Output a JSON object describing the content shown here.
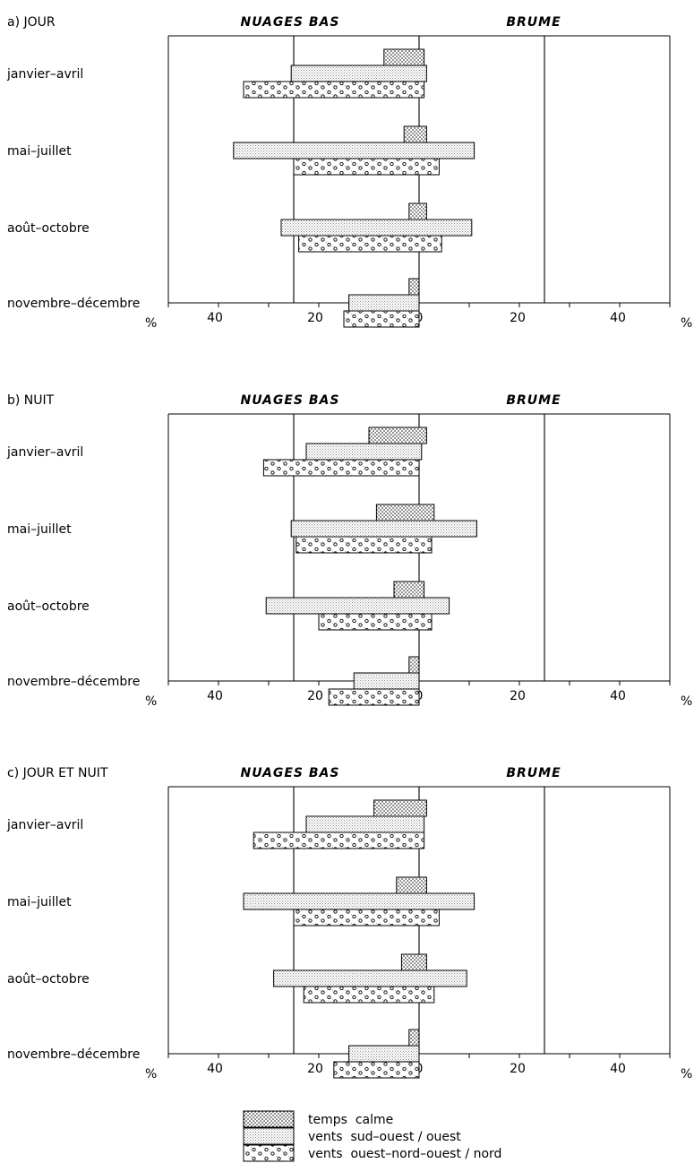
{
  "chart_data": [
    {
      "type": "bar",
      "panel_title": "a) JOUR",
      "left_heading": "NUAGES BAS",
      "right_heading": "BRUME",
      "categories": [
        "janvier–avril",
        "mai–juillet",
        "août–octobre",
        "novembre–décembre"
      ],
      "x_ticks": [
        "40",
        "20",
        "0",
        "20",
        "40"
      ],
      "x_unit": "%",
      "xlim": [
        -50,
        50
      ],
      "reference_lines": [
        -25,
        0,
        25
      ],
      "series": [
        {
          "name": "temps calme",
          "pattern": "dots",
          "low": [
            -7,
            -3,
            -2,
            -2
          ],
          "high": [
            1,
            1.5,
            1.5,
            0
          ]
        },
        {
          "name": "vents sud–ouest / ouest",
          "pattern": "fine",
          "low": [
            -25.5,
            -37,
            -27.5,
            -14
          ],
          "high": [
            1.5,
            11,
            10.5,
            0
          ]
        },
        {
          "name": "vents ouest–nord–ouest / nord",
          "pattern": "circles",
          "low": [
            -35,
            -25,
            -24,
            -15
          ],
          "high": [
            1,
            4,
            4.5,
            0
          ]
        }
      ]
    },
    {
      "type": "bar",
      "panel_title": "b) NUIT",
      "left_heading": "NUAGES BAS",
      "right_heading": "BRUME",
      "categories": [
        "janvier–avril",
        "mai–juillet",
        "août–octobre",
        "novembre–décembre"
      ],
      "x_ticks": [
        "40",
        "20",
        "0",
        "20",
        "40"
      ],
      "x_unit": "%",
      "xlim": [
        -50,
        50
      ],
      "reference_lines": [
        -25,
        0,
        25
      ],
      "series": [
        {
          "name": "temps calme",
          "pattern": "dots",
          "low": [
            -10,
            -8.5,
            -5,
            -2
          ],
          "high": [
            1.5,
            3,
            1,
            0
          ]
        },
        {
          "name": "vents sud–ouest / ouest",
          "pattern": "fine",
          "low": [
            -22.5,
            -25.5,
            -30.5,
            -13
          ],
          "high": [
            0.5,
            11.5,
            6,
            0
          ]
        },
        {
          "name": "vents ouest–nord–ouest / nord",
          "pattern": "circles",
          "low": [
            -31,
            -24.5,
            -20,
            -18
          ],
          "high": [
            0,
            2.5,
            2.5,
            0
          ]
        }
      ]
    },
    {
      "type": "bar",
      "panel_title": "c) JOUR ET NUIT",
      "left_heading": "NUAGES BAS",
      "right_heading": "BRUME",
      "categories": [
        "janvier–avril",
        "mai–juillet",
        "août–octobre",
        "novembre–décembre"
      ],
      "x_ticks": [
        "40",
        "20",
        "0",
        "20",
        "40"
      ],
      "x_unit": "%",
      "xlim": [
        -50,
        50
      ],
      "reference_lines": [
        -25,
        0,
        25
      ],
      "series": [
        {
          "name": "temps calme",
          "pattern": "dots",
          "low": [
            -9,
            -4.5,
            -3.5,
            -2
          ],
          "high": [
            1.5,
            1.5,
            1.5,
            0
          ]
        },
        {
          "name": "vents sud–ouest / ouest",
          "pattern": "fine",
          "low": [
            -22.5,
            -35,
            -29,
            -14
          ],
          "high": [
            1,
            11,
            9.5,
            0
          ]
        },
        {
          "name": "vents ouest–nord–ouest / nord",
          "pattern": "circles",
          "low": [
            -33,
            -25,
            -23,
            -17
          ],
          "high": [
            1,
            4,
            3,
            0
          ]
        }
      ]
    }
  ],
  "legend": [
    {
      "key": "dots",
      "label": "temps  calme"
    },
    {
      "key": "fine",
      "label": "vents  sud–ouest / ouest"
    },
    {
      "key": "circles",
      "label": "vents  ouest–nord–ouest / nord"
    }
  ]
}
